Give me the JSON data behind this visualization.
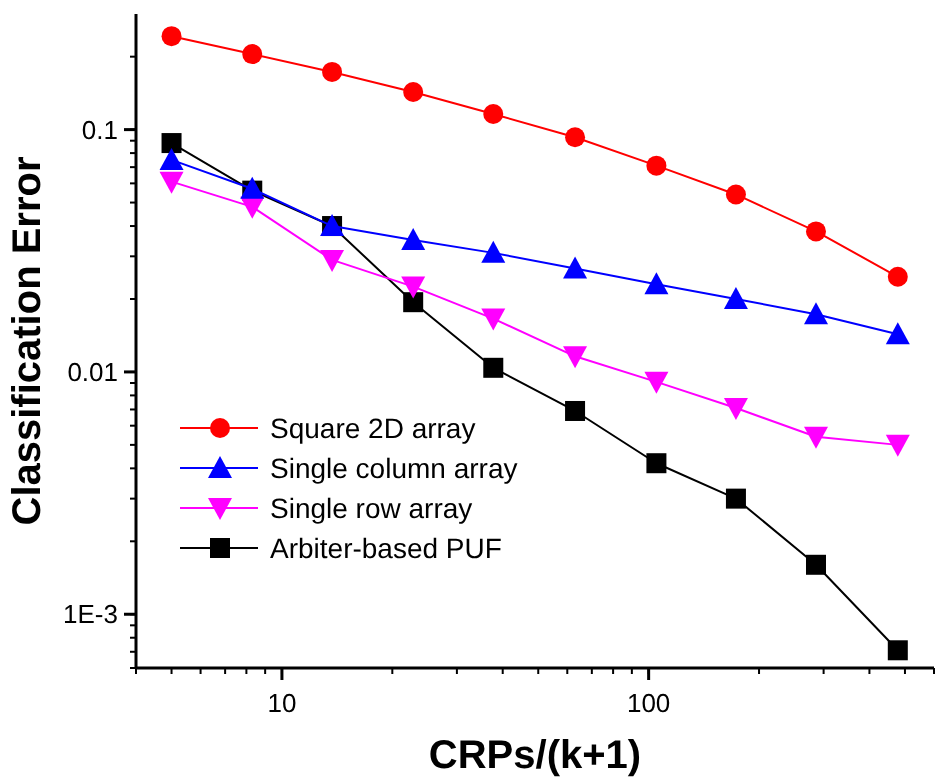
{
  "chart_data": {
    "type": "line",
    "xlabel": "CRPs/(k+1)",
    "ylabel": "Classification Error",
    "log": "xy",
    "x": [
      5,
      8.3,
      13.7,
      22.8,
      37.7,
      63,
      105,
      173,
      286,
      478
    ],
    "series": [
      {
        "name": "Square 2D array",
        "color": "#ff0000",
        "marker": "circle",
        "values": [
          0.243,
          0.205,
          0.173,
          0.143,
          0.116,
          0.093,
          0.071,
          0.054,
          0.038,
          0.0247
        ]
      },
      {
        "name": "Single column array",
        "color": "#0000ff",
        "marker": "triangle",
        "values": [
          0.075,
          0.057,
          0.04,
          0.035,
          0.031,
          0.0267,
          0.023,
          0.02,
          0.0173,
          0.0143
        ]
      },
      {
        "name": "Single row array",
        "color": "#ff00ff",
        "marker": "triangle-down",
        "values": [
          0.061,
          0.048,
          0.029,
          0.0225,
          0.0166,
          0.0116,
          0.0091,
          0.0071,
          0.0054,
          0.005
        ]
      },
      {
        "name": "Arbiter-based PUF",
        "color": "#000000",
        "marker": "square",
        "values": [
          0.088,
          0.056,
          0.04,
          0.0194,
          0.0104,
          0.0069,
          0.0042,
          0.003,
          0.0016,
          0.00071
        ]
      }
    ],
    "xlim": [
      4,
      600
    ],
    "ylim": [
      0.0006,
      0.3
    ],
    "xticks": [
      10,
      100
    ],
    "yticks": [
      {
        "value": 0.001,
        "label": "1E-3"
      },
      0.01,
      0.1
    ],
    "grid": false,
    "legend": "bottom left",
    "line_style": "solid"
  }
}
